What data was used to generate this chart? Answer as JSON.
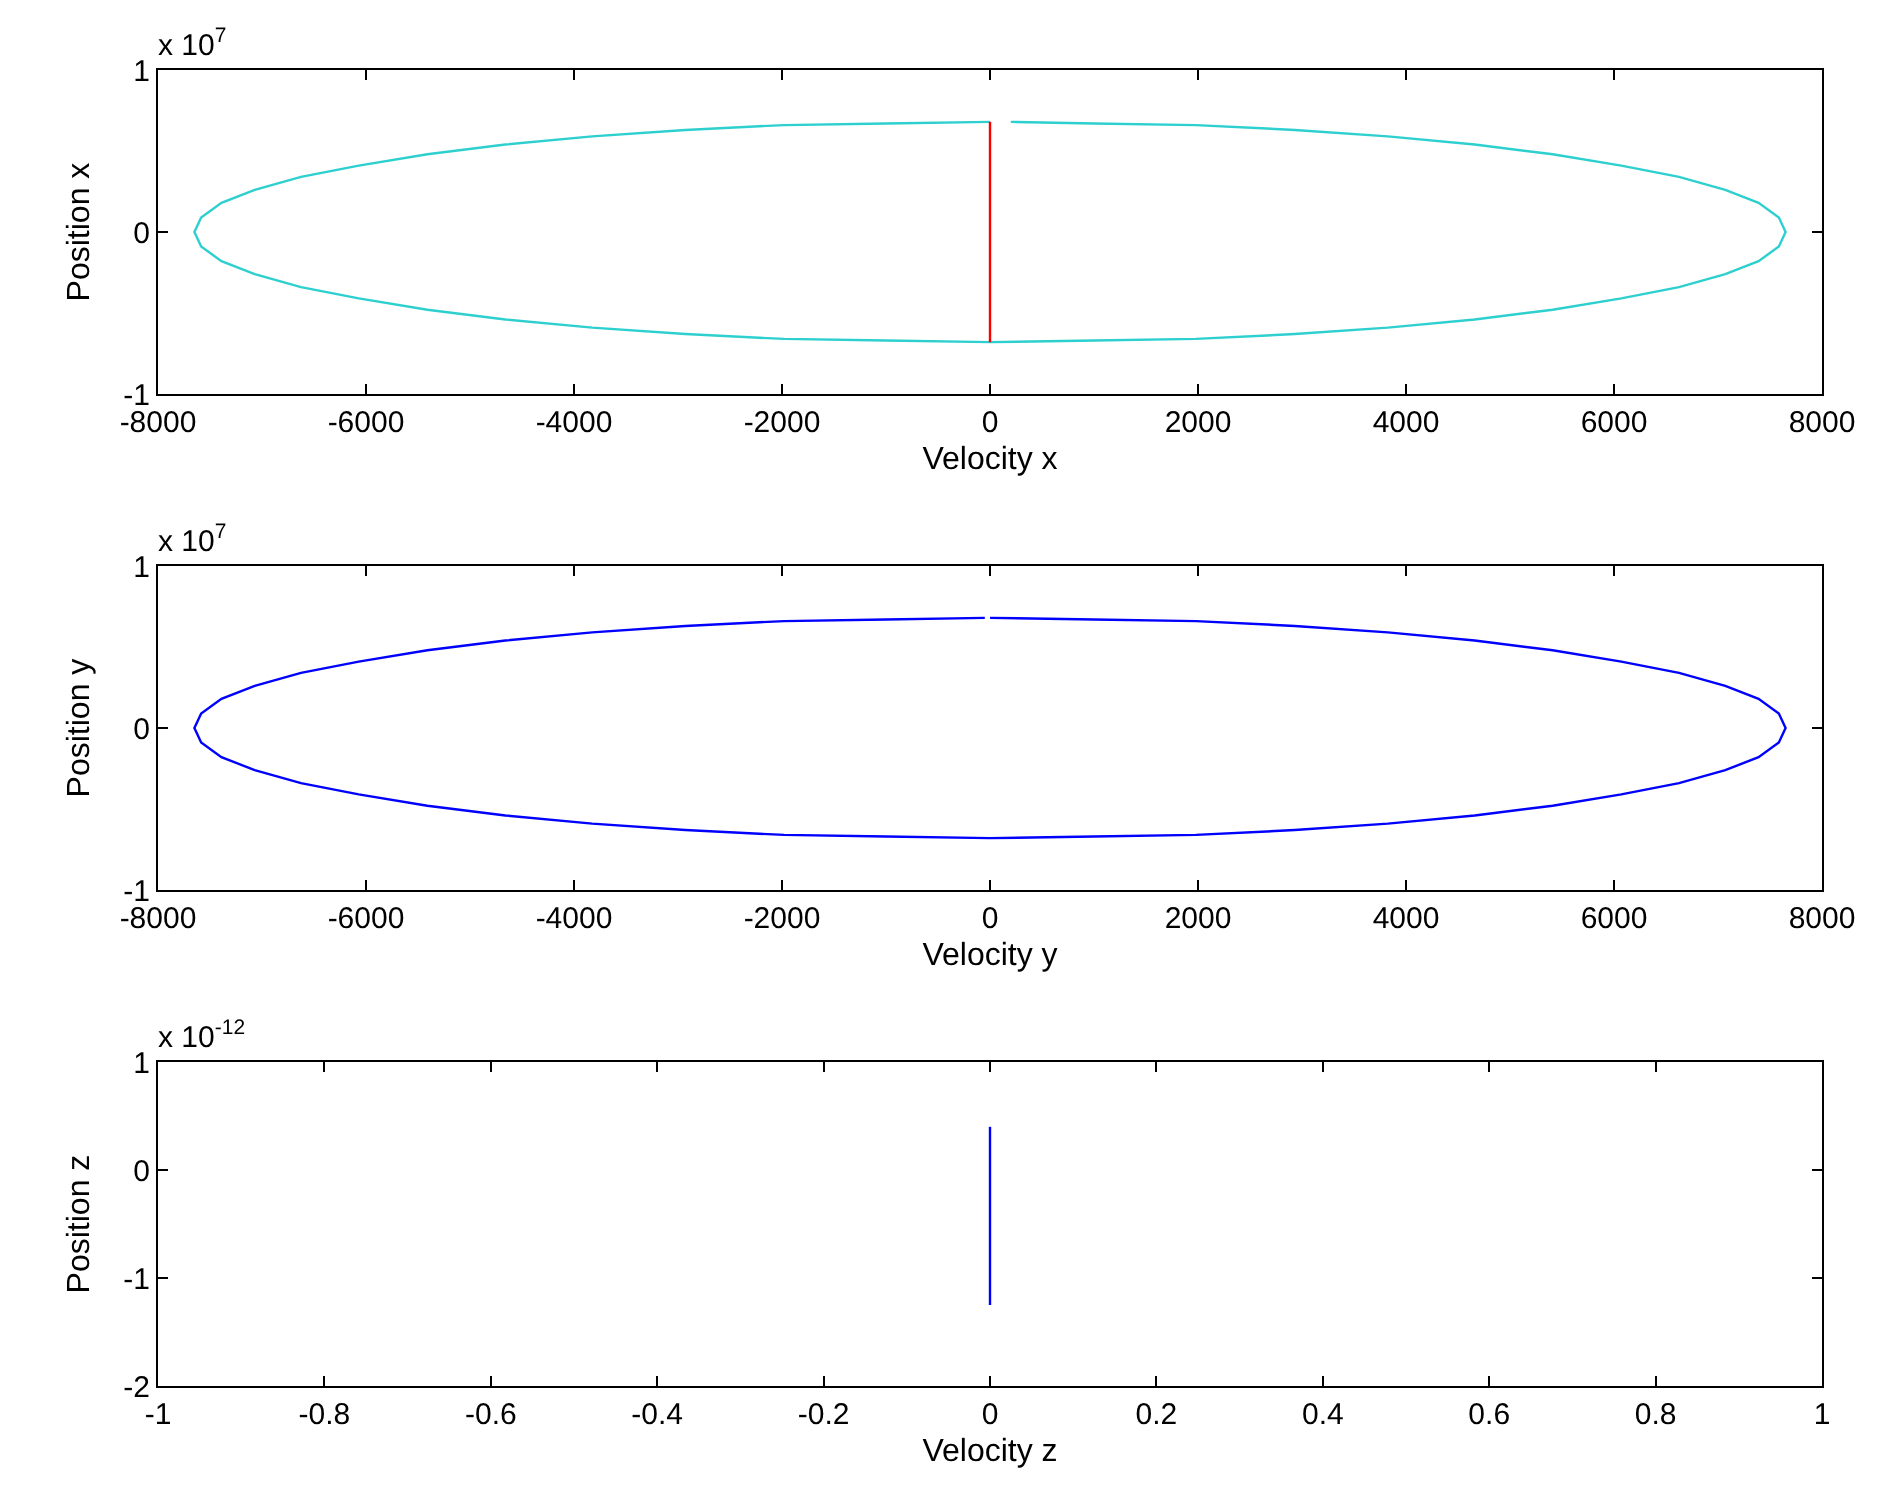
{
  "chart_data": [
    {
      "type": "line",
      "xlabel": "Velocity x",
      "ylabel": "Position x",
      "annotations": [
        "x 10$^{7}$"
      ],
      "xlim": [
        -8000,
        8000
      ],
      "xticks": [
        -8000,
        -6000,
        -4000,
        -2000,
        0,
        2000,
        4000,
        6000,
        8000
      ],
      "ylim": [
        -1,
        1
      ],
      "yticks": [
        -1,
        0,
        1
      ],
      "grid": false,
      "series": [
        {
          "color": "#2ecfcf",
          "x": [
            200,
            1000,
            1980,
            2930,
            3825,
            4660,
            5410,
            6070,
            6625,
            7070,
            7390,
            7585,
            7650,
            7585,
            7390,
            7070,
            6625,
            6070,
            5410,
            4660,
            3825,
            2930,
            1980,
            1000,
            0,
            -1000,
            -1980,
            -2930,
            -3825,
            -4660,
            -5410,
            -6070,
            -6625,
            -7070,
            -7390,
            -7585,
            -7650,
            -7585,
            -7390,
            -7070,
            -6625,
            -6070,
            -5410,
            -4660,
            -3825,
            -2930,
            -1980,
            -1000,
            0
          ],
          "values": [
            0.68,
            0.67,
            0.66,
            0.63,
            0.59,
            0.54,
            0.48,
            0.41,
            0.34,
            0.26,
            0.18,
            0.09,
            0,
            -0.09,
            -0.18,
            -0.26,
            -0.34,
            -0.41,
            -0.48,
            -0.54,
            -0.59,
            -0.63,
            -0.66,
            -0.67,
            -0.68,
            -0.67,
            -0.66,
            -0.63,
            -0.59,
            -0.54,
            -0.48,
            -0.41,
            -0.34,
            -0.26,
            -0.18,
            -0.09,
            0,
            0.09,
            0.18,
            0.26,
            0.34,
            0.41,
            0.48,
            0.54,
            0.59,
            0.63,
            0.66,
            0.67,
            0.68
          ]
        },
        {
          "color": "#ff0000",
          "x": [
            0,
            0
          ],
          "values": [
            -0.68,
            0.68
          ]
        }
      ]
    },
    {
      "type": "line",
      "xlabel": "Velocity y",
      "ylabel": "Position y",
      "annotations": [
        "x 10$^{7}$"
      ],
      "xlim": [
        -8000,
        8000
      ],
      "xticks": [
        -8000,
        -6000,
        -4000,
        -2000,
        0,
        2000,
        4000,
        6000,
        8000
      ],
      "ylim": [
        -1,
        1
      ],
      "yticks": [
        -1,
        0,
        1
      ],
      "grid": false,
      "series": [
        {
          "color": "#0000ff",
          "x": [
            0,
            1000,
            1980,
            2930,
            3825,
            4660,
            5410,
            6070,
            6625,
            7070,
            7390,
            7585,
            7650,
            7585,
            7390,
            7070,
            6625,
            6070,
            5410,
            4660,
            3825,
            2930,
            1980,
            1000,
            0,
            -1000,
            -1980,
            -2930,
            -3825,
            -4660,
            -5410,
            -6070,
            -6625,
            -7070,
            -7390,
            -7585,
            -7650,
            -7585,
            -7390,
            -7070,
            -6625,
            -6070,
            -5410,
            -4660,
            -3825,
            -2930,
            -1980,
            -1000,
            -50
          ],
          "values": [
            0.68,
            0.67,
            0.66,
            0.63,
            0.59,
            0.54,
            0.48,
            0.41,
            0.34,
            0.26,
            0.18,
            0.09,
            0,
            -0.09,
            -0.18,
            -0.26,
            -0.34,
            -0.41,
            -0.48,
            -0.54,
            -0.59,
            -0.63,
            -0.66,
            -0.67,
            -0.68,
            -0.67,
            -0.66,
            -0.63,
            -0.59,
            -0.54,
            -0.48,
            -0.41,
            -0.34,
            -0.26,
            -0.18,
            -0.09,
            0,
            0.09,
            0.18,
            0.26,
            0.34,
            0.41,
            0.48,
            0.54,
            0.59,
            0.63,
            0.66,
            0.67,
            0.68
          ]
        }
      ]
    },
    {
      "type": "line",
      "xlabel": "Velocity z",
      "ylabel": "Position z",
      "annotations": [
        "x 10$^{-12}$"
      ],
      "xlim": [
        -1,
        1
      ],
      "xticks": [
        -1,
        -0.8,
        -0.6,
        -0.4,
        -0.2,
        0,
        0.2,
        0.4,
        0.6,
        0.8,
        1
      ],
      "ylim": [
        -2,
        1
      ],
      "yticks": [
        -2,
        -1,
        0,
        1
      ],
      "grid": false,
      "series": [
        {
          "color": "#0000ff",
          "x": [
            0,
            0
          ],
          "values": [
            -1.25,
            0.4
          ]
        }
      ]
    }
  ]
}
